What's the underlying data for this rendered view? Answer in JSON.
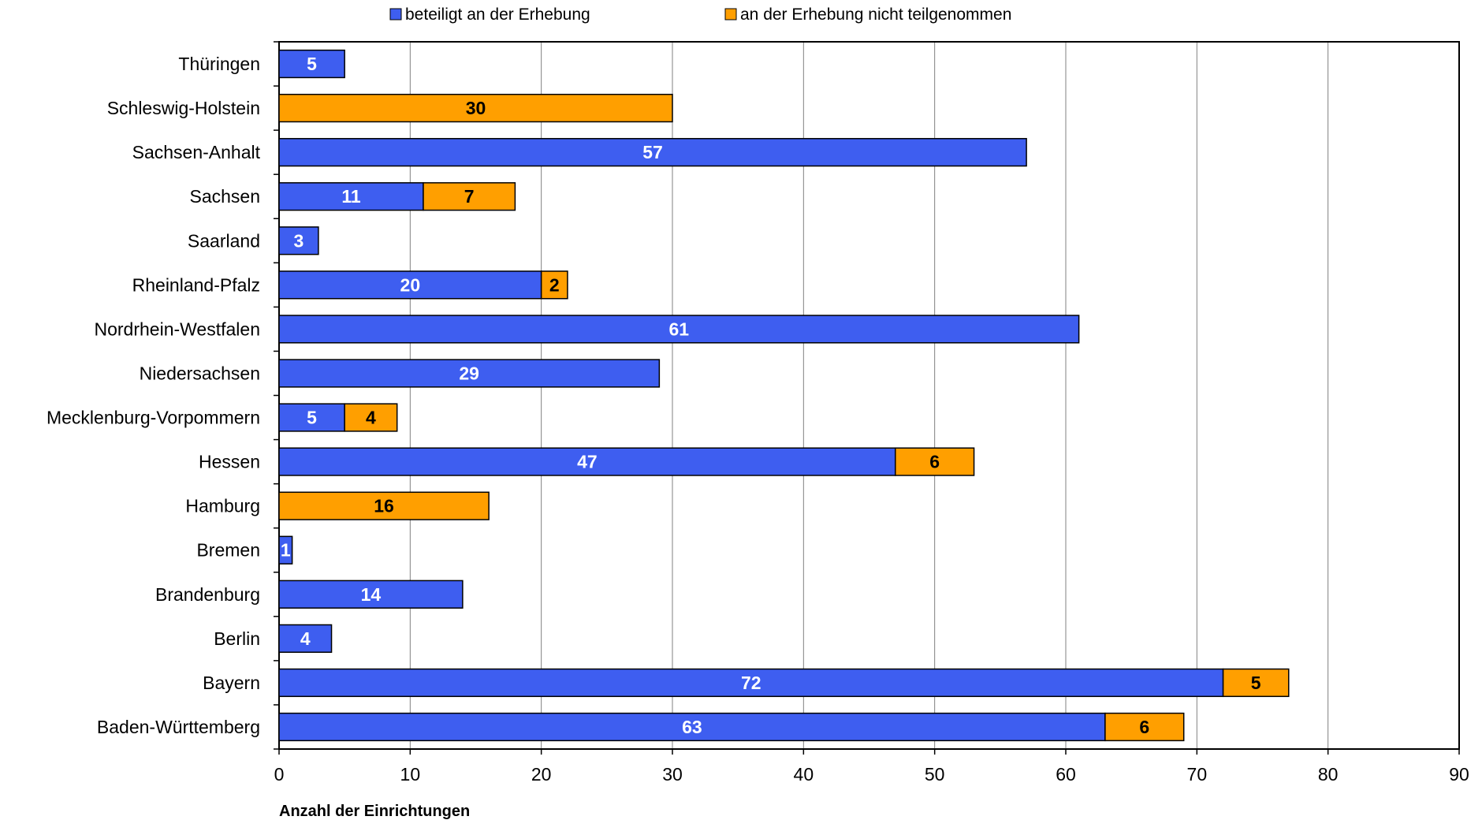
{
  "chart_data": {
    "type": "bar",
    "orientation": "horizontal",
    "stacked": true,
    "categories": [
      "Thüringen",
      "Schleswig-Holstein",
      "Sachsen-Anhalt",
      "Sachsen",
      "Saarland",
      "Rheinland-Pfalz",
      "Nordrhein-Westfalen",
      "Niedersachsen",
      "Mecklenburg-Vorpommern",
      "Hessen",
      "Hamburg",
      "Bremen",
      "Brandenburg",
      "Berlin",
      "Bayern",
      "Baden-Württemberg"
    ],
    "series": [
      {
        "name": "beteiligt an der Erhebung",
        "color": "#3e5ef0",
        "label_color": "#ffffff",
        "values": [
          5,
          0,
          57,
          11,
          3,
          20,
          61,
          29,
          5,
          47,
          0,
          1,
          14,
          4,
          72,
          63
        ]
      },
      {
        "name": "an der Erhebung nicht teilgenommen",
        "color": "#ff9f00",
        "label_color": "#000000",
        "values": [
          0,
          30,
          0,
          7,
          0,
          2,
          0,
          0,
          4,
          6,
          16,
          0,
          0,
          0,
          5,
          6
        ]
      }
    ],
    "xlabel": "Anzahl der Einrichtungen",
    "ylabel": "",
    "xlim": [
      0,
      90
    ],
    "xticks": [
      0,
      10,
      20,
      30,
      40,
      50,
      60,
      70,
      80,
      90
    ],
    "grid": "vertical",
    "legend_position": "top-center"
  }
}
